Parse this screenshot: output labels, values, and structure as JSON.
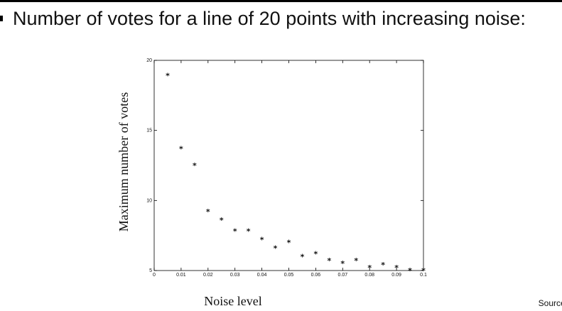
{
  "slide": {
    "heading": "Number of votes for a line of 20 points with increasing noise:",
    "source_note": "Source:"
  },
  "chart_data": {
    "type": "scatter",
    "marker": "*",
    "xlabel": "Noise level",
    "ylabel": "Maximum number of votes",
    "xlim": [
      0,
      0.1
    ],
    "ylim": [
      5,
      20
    ],
    "x_ticks": [
      "0",
      "0.01",
      "0.02",
      "0.03",
      "0.04",
      "0.05",
      "0.06",
      "0.07",
      "0.08",
      "0.09",
      "0.1"
    ],
    "y_ticks": [
      "5",
      "10",
      "15",
      "20"
    ],
    "points": [
      {
        "x": 0.005,
        "y": 18.9
      },
      {
        "x": 0.01,
        "y": 13.7
      },
      {
        "x": 0.015,
        "y": 12.5
      },
      {
        "x": 0.02,
        "y": 9.2
      },
      {
        "x": 0.025,
        "y": 8.6
      },
      {
        "x": 0.03,
        "y": 7.8
      },
      {
        "x": 0.035,
        "y": 7.8
      },
      {
        "x": 0.04,
        "y": 7.2
      },
      {
        "x": 0.045,
        "y": 6.6
      },
      {
        "x": 0.05,
        "y": 7.0
      },
      {
        "x": 0.055,
        "y": 6.0
      },
      {
        "x": 0.06,
        "y": 6.2
      },
      {
        "x": 0.065,
        "y": 5.7
      },
      {
        "x": 0.07,
        "y": 5.5
      },
      {
        "x": 0.075,
        "y": 5.7
      },
      {
        "x": 0.08,
        "y": 5.2
      },
      {
        "x": 0.085,
        "y": 5.4
      },
      {
        "x": 0.09,
        "y": 5.2
      },
      {
        "x": 0.095,
        "y": 5.0
      },
      {
        "x": 0.1,
        "y": 5.0
      }
    ]
  }
}
